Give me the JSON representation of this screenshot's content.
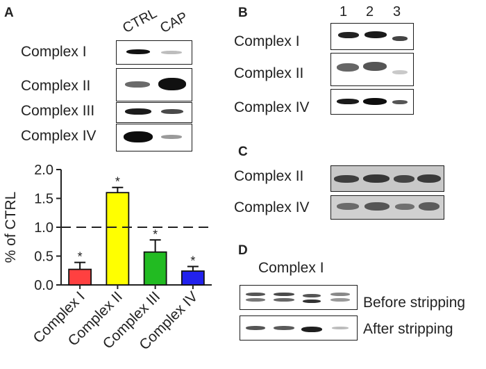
{
  "panelA": {
    "letter": "A",
    "lanes": [
      "CTRL",
      "CAP"
    ],
    "rows": [
      "Complex I",
      "Complex II",
      "Complex III",
      "Complex IV"
    ]
  },
  "panelB": {
    "letter": "B",
    "lanes": [
      "1",
      "2",
      "3"
    ],
    "rows": [
      "Complex I",
      "Complex II",
      "Complex IV"
    ]
  },
  "panelC": {
    "letter": "C",
    "rows": [
      "Complex II",
      "Complex IV"
    ]
  },
  "panelD": {
    "letter": "D",
    "title": "Complex I",
    "rows": [
      "Before stripping",
      "After stripping"
    ]
  },
  "chart_data": {
    "type": "bar",
    "categories": [
      "Complex I",
      "Complex II",
      "Complex III",
      "Complex IV"
    ],
    "values": [
      0.27,
      1.6,
      0.57,
      0.24
    ],
    "errors": [
      0.12,
      0.09,
      0.21,
      0.08
    ],
    "significance": [
      "*",
      "*",
      "*",
      "*"
    ],
    "colors": [
      "#ff4040",
      "#ffff00",
      "#22bb22",
      "#2222ee"
    ],
    "ylabel": "% of CTRL",
    "ylim": [
      0,
      2.0
    ],
    "yticks": [
      "0.0",
      "0.5",
      "1.0",
      "1.5",
      "2.0"
    ],
    "reference_line": 1.0,
    "grid": false
  }
}
